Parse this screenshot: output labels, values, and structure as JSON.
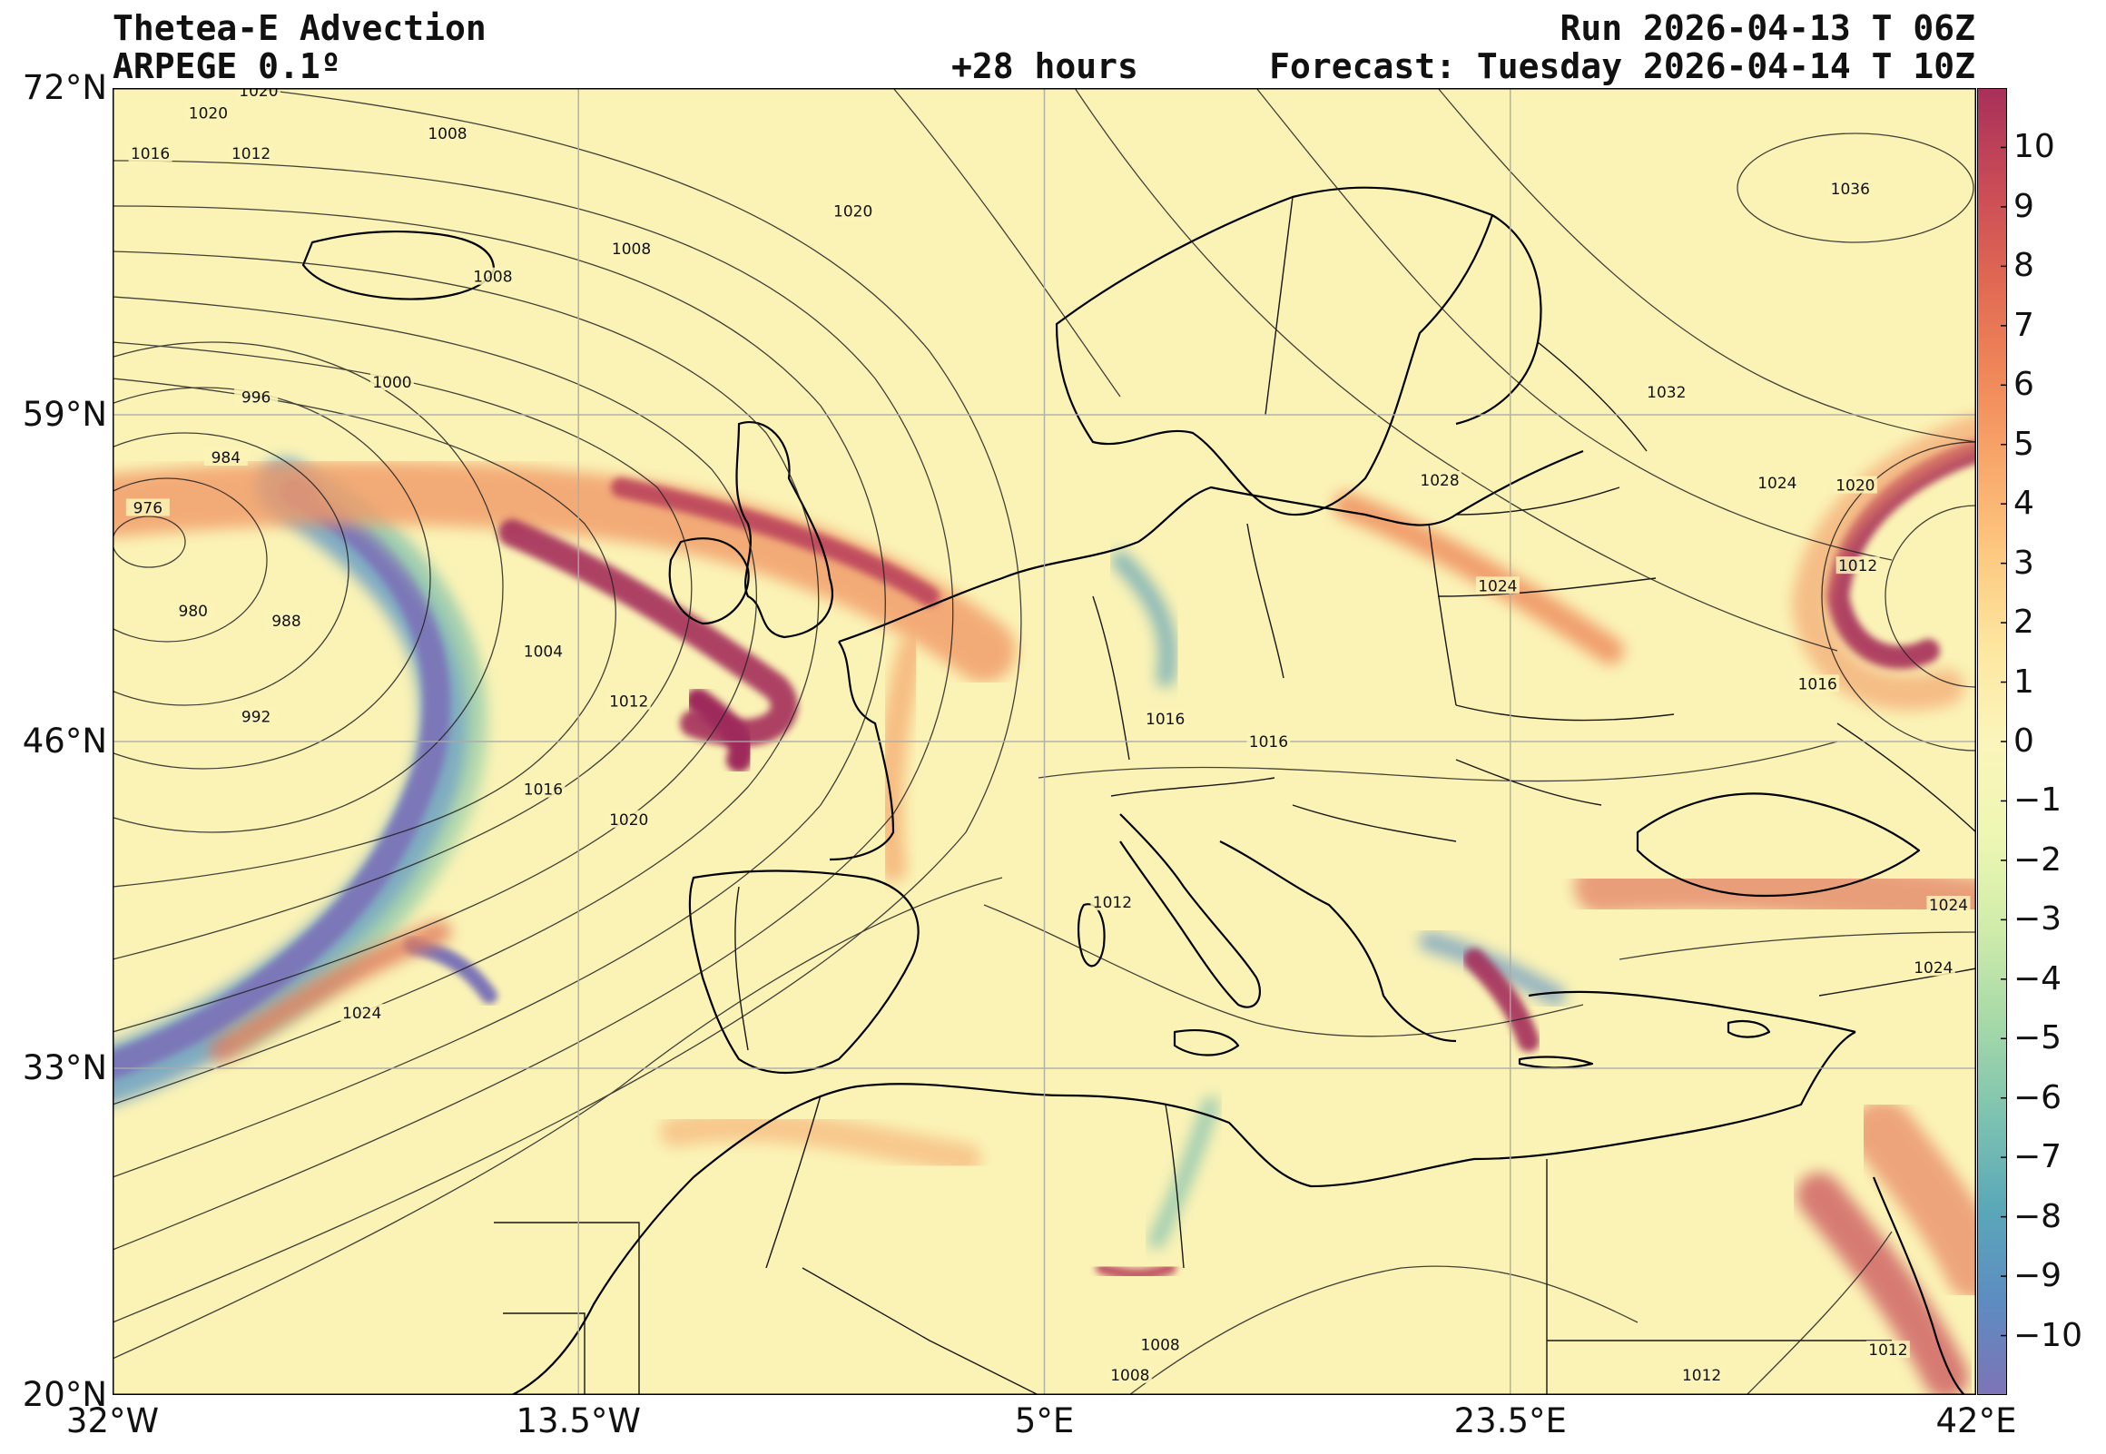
{
  "header": {
    "title": "Thetea-E Advection",
    "model": "ARPEGE 0.1º",
    "lead_time": "+28 hours",
    "run": "Run 2026-04-13 T 06Z",
    "forecast": "Forecast: Tuesday 2026-04-14 T 10Z"
  },
  "map": {
    "projection": "plate carree",
    "lon_range": [
      -32,
      42
    ],
    "lat_range": [
      20,
      72
    ],
    "lat_labels": [
      {
        "value": 72,
        "label": "72°N"
      },
      {
        "value": 59,
        "label": "59°N"
      },
      {
        "value": 46,
        "label": "46°N"
      },
      {
        "value": 33,
        "label": "33°N"
      },
      {
        "value": 20,
        "label": "20°N"
      }
    ],
    "lon_labels": [
      {
        "value": -32,
        "label": "32°W"
      },
      {
        "value": -13.5,
        "label": "13.5°W"
      },
      {
        "value": 5,
        "label": "5°E"
      },
      {
        "value": 23.5,
        "label": "23.5°E"
      },
      {
        "value": 42,
        "label": "42°E"
      }
    ],
    "gridlines": true,
    "background_color": "#fbf3b6",
    "isobar_labels": [
      {
        "text": "1020",
        "lon": -28.2,
        "lat": 71.0
      },
      {
        "text": "1020",
        "lon": -26.2,
        "lat": 71.9
      },
      {
        "text": "1016",
        "lon": -30.5,
        "lat": 69.4
      },
      {
        "text": "1012",
        "lon": -26.5,
        "lat": 69.4
      },
      {
        "text": "1008",
        "lon": -18.7,
        "lat": 70.2
      },
      {
        "text": "1008",
        "lon": -11.4,
        "lat": 65.6
      },
      {
        "text": "1008",
        "lon": -16.9,
        "lat": 64.5
      },
      {
        "text": "1020",
        "lon": -2.6,
        "lat": 67.1
      },
      {
        "text": "1036",
        "lon": 37.0,
        "lat": 68.0
      },
      {
        "text": "1000",
        "lon": -20.9,
        "lat": 60.3
      },
      {
        "text": "996",
        "lon": -26.3,
        "lat": 59.7
      },
      {
        "text": "984",
        "lon": -27.5,
        "lat": 57.3
      },
      {
        "text": "976",
        "lon": -30.6,
        "lat": 55.3
      },
      {
        "text": "980",
        "lon": -28.8,
        "lat": 51.2
      },
      {
        "text": "988",
        "lon": -25.1,
        "lat": 50.8
      },
      {
        "text": "992",
        "lon": -26.3,
        "lat": 47.0
      },
      {
        "text": "1004",
        "lon": -14.9,
        "lat": 49.6
      },
      {
        "text": "1012",
        "lon": -11.5,
        "lat": 47.6
      },
      {
        "text": "1016",
        "lon": -14.9,
        "lat": 44.1
      },
      {
        "text": "1020",
        "lon": -11.5,
        "lat": 42.9
      },
      {
        "text": "1024",
        "lon": -22.1,
        "lat": 35.2
      },
      {
        "text": "1032",
        "lon": 29.7,
        "lat": 59.9
      },
      {
        "text": "1028",
        "lon": 20.7,
        "lat": 56.4
      },
      {
        "text": "1024",
        "lon": 34.1,
        "lat": 56.3
      },
      {
        "text": "1020",
        "lon": 37.2,
        "lat": 56.2
      },
      {
        "text": "1024",
        "lon": 23.0,
        "lat": 52.2
      },
      {
        "text": "1012",
        "lon": 37.3,
        "lat": 53.0
      },
      {
        "text": "1016",
        "lon": 35.7,
        "lat": 48.3
      },
      {
        "text": "1016",
        "lon": 9.8,
        "lat": 46.9
      },
      {
        "text": "1016",
        "lon": 13.9,
        "lat": 46.0
      },
      {
        "text": "1012",
        "lon": 7.7,
        "lat": 39.6
      },
      {
        "text": "1024",
        "lon": 40.9,
        "lat": 39.5
      },
      {
        "text": "1024",
        "lon": 40.3,
        "lat": 37.0
      },
      {
        "text": "1008",
        "lon": 9.6,
        "lat": 22.0
      },
      {
        "text": "1008",
        "lon": 8.4,
        "lat": 20.8
      },
      {
        "text": "1012",
        "lon": 31.1,
        "lat": 20.8
      },
      {
        "text": "1012",
        "lon": 38.5,
        "lat": 21.8
      }
    ]
  },
  "colorbar": {
    "min": -11,
    "max": 11,
    "ticks": [
      "10",
      "9",
      "8",
      "7",
      "6",
      "5",
      "4",
      "3",
      "2",
      "1",
      "0",
      "−1",
      "−2",
      "−3",
      "−4",
      "−5",
      "−6",
      "−7",
      "−8",
      "−9",
      "−10"
    ],
    "tick_values": [
      10,
      9,
      8,
      7,
      6,
      5,
      4,
      3,
      2,
      1,
      0,
      -1,
      -2,
      -3,
      -4,
      -5,
      -6,
      -7,
      -8,
      -9,
      -10
    ],
    "colors": [
      "#7d74b6",
      "#5d8cc1",
      "#5aa8b8",
      "#7ec3b0",
      "#a6d9a8",
      "#d0ecaa",
      "#eef7b3",
      "#fbf5bb",
      "#fde7a0",
      "#fdc980",
      "#f8a76a",
      "#ef8558",
      "#de6653",
      "#c84a57",
      "#a8305a"
    ]
  },
  "styling": {
    "coastline_color": "#000000",
    "isobar_color": "#222222",
    "grid_color": "#aaaaaa"
  }
}
